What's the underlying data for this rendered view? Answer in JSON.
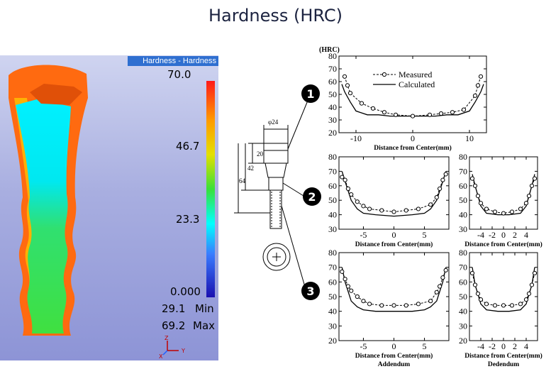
{
  "title": "Hardness (HRC)",
  "simulation": {
    "legend_title": "Hardness - Hardness",
    "scale_labels": [
      "70.0",
      "46.7",
      "23.3",
      "0.000"
    ],
    "min_value": "29.1",
    "min_label": "Min",
    "max_value": "69.2",
    "max_label": "Max",
    "triad_labels": [
      "Z",
      "X",
      "Y"
    ]
  },
  "drawing": {
    "dimensions": [
      "φ24",
      "20",
      "42",
      "64"
    ],
    "markers": [
      "1",
      "2",
      "3"
    ]
  },
  "chart_data": [
    {
      "type": "line",
      "unit_label": "(HRC)",
      "xlabel": "Distance from Center(mm)",
      "xlim": [
        -13,
        13
      ],
      "ylim": [
        20,
        80
      ],
      "xticks": [
        -10,
        0,
        10
      ],
      "yticks": [
        20,
        30,
        40,
        50,
        60,
        70,
        80
      ],
      "legend": [
        "Measured",
        "Calculated"
      ],
      "series": [
        {
          "name": "Measured",
          "x": [
            -12,
            -11.5,
            -11,
            -9,
            -7,
            -5,
            -3,
            0,
            3,
            5,
            7,
            9,
            11,
            11.5,
            12
          ],
          "y": [
            64,
            57,
            51,
            43,
            39,
            36,
            34,
            33,
            34,
            35,
            36,
            38,
            49,
            57,
            64
          ]
        },
        {
          "name": "Calculated",
          "x": [
            -12.5,
            -12,
            -11,
            -10,
            -8,
            -6,
            -4,
            -2,
            0,
            2,
            4,
            6,
            8,
            10,
            11,
            12,
            12.5
          ],
          "y": [
            58,
            52,
            44,
            37,
            34,
            34,
            33,
            33,
            33,
            33,
            33,
            34,
            34,
            37,
            44,
            52,
            58
          ]
        }
      ]
    },
    {
      "type": "line",
      "xlabel": "Distance from Center(mm)",
      "xlim": [
        -9,
        9
      ],
      "ylim": [
        30,
        80
      ],
      "xticks": [
        -5,
        0,
        5
      ],
      "yticks": [
        30,
        40,
        50,
        60,
        70,
        80
      ],
      "series": [
        {
          "name": "Measured",
          "x": [
            -8.5,
            -8,
            -7.5,
            -7,
            -6,
            -5,
            -4,
            -2,
            0,
            2,
            4,
            6,
            7,
            7.5,
            8,
            8.5
          ],
          "y": [
            66,
            64,
            58,
            54,
            49,
            46,
            44,
            43,
            42,
            43,
            44,
            47,
            52,
            58,
            64,
            68
          ]
        },
        {
          "name": "Calculated",
          "x": [
            -8.5,
            -8,
            -7,
            -6,
            -5,
            -3,
            0,
            3,
            5,
            6,
            7,
            8,
            8.5
          ],
          "y": [
            70,
            63,
            50,
            44,
            41,
            40,
            39,
            40,
            41,
            44,
            50,
            63,
            70
          ]
        }
      ]
    },
    {
      "type": "line",
      "xlabel": "Distance from Center(mm)",
      "xlim": [
        -6,
        6
      ],
      "ylim": [
        30,
        80
      ],
      "xticks": [
        -4,
        -2,
        0,
        2,
        4
      ],
      "yticks": [
        30,
        40,
        50,
        60,
        70,
        80
      ],
      "series": [
        {
          "name": "Measured",
          "x": [
            -5.5,
            -5,
            -4.5,
            -4,
            -3,
            -1.5,
            0,
            1.5,
            3,
            4,
            4.5,
            5,
            5.5
          ],
          "y": [
            65,
            60,
            53,
            48,
            44,
            42,
            41,
            42,
            44,
            48,
            53,
            60,
            65
          ]
        },
        {
          "name": "Calculated",
          "x": [
            -5.5,
            -5,
            -4,
            -3,
            -1,
            0,
            1,
            3,
            4,
            5,
            5.5
          ],
          "y": [
            68,
            60,
            46,
            41,
            40,
            40,
            40,
            41,
            46,
            60,
            68
          ]
        }
      ]
    },
    {
      "type": "line",
      "xlabel": "Distance from Center(mm)",
      "xlim": [
        -9,
        9
      ],
      "ylim": [
        20,
        80
      ],
      "xticks": [
        -5,
        0,
        5
      ],
      "yticks": [
        20,
        30,
        40,
        50,
        60,
        70,
        80
      ],
      "subtitle": "Addendum",
      "series": [
        {
          "name": "Measured",
          "x": [
            -8.5,
            -8,
            -7.5,
            -7,
            -6,
            -5,
            -4,
            -2,
            0,
            2,
            4,
            6,
            7,
            7.5,
            8,
            8.5
          ],
          "y": [
            67,
            62,
            57,
            54,
            50,
            47,
            45,
            44,
            44,
            44,
            45,
            47,
            53,
            57,
            63,
            68
          ]
        },
        {
          "name": "Calculated",
          "x": [
            -8.5,
            -8,
            -7,
            -6,
            -5,
            -3,
            0,
            3,
            5,
            6,
            7,
            8,
            8.5
          ],
          "y": [
            70,
            60,
            47,
            43,
            41,
            40,
            40,
            40,
            41,
            43,
            47,
            60,
            70
          ]
        }
      ]
    },
    {
      "type": "line",
      "xlabel": "Distance from Center(mm)",
      "xlim": [
        -6,
        6
      ],
      "ylim": [
        20,
        80
      ],
      "xticks": [
        -4,
        -2,
        0,
        2,
        4
      ],
      "yticks": [
        20,
        30,
        40,
        50,
        60,
        70,
        80
      ],
      "subtitle": "Dedendum",
      "series": [
        {
          "name": "Measured",
          "x": [
            -5.5,
            -5,
            -4.5,
            -4,
            -3,
            -1.5,
            0,
            1.5,
            3,
            4,
            4.5,
            5,
            5.5
          ],
          "y": [
            66,
            58,
            52,
            48,
            45,
            44,
            44,
            44,
            45,
            48,
            52,
            58,
            66
          ]
        },
        {
          "name": "Calculated",
          "x": [
            -5.5,
            -5,
            -4,
            -3,
            -1,
            0,
            1,
            3,
            4,
            5,
            5.5
          ],
          "y": [
            70,
            58,
            45,
            41,
            40,
            40,
            40,
            41,
            45,
            58,
            70
          ]
        }
      ]
    }
  ]
}
